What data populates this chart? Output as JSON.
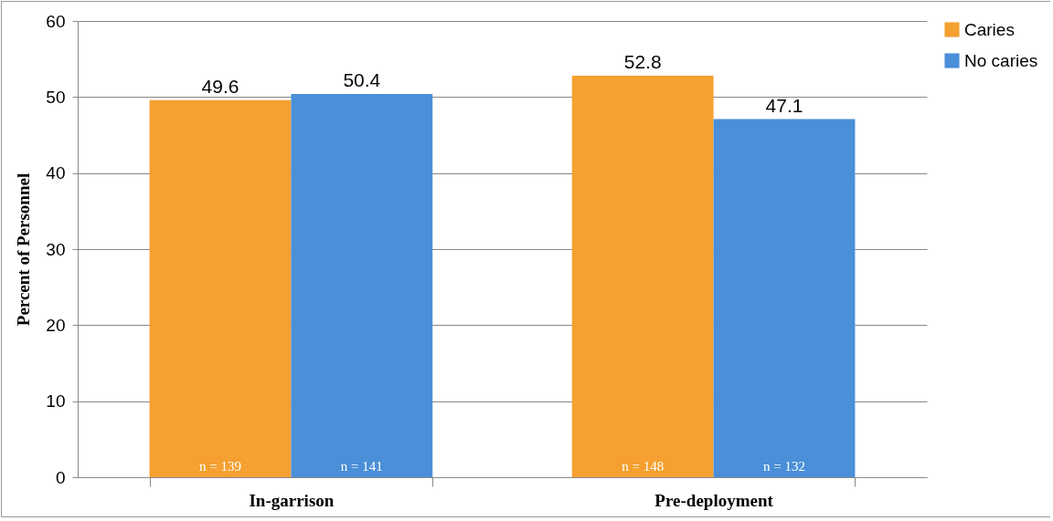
{
  "chart_data": {
    "type": "bar",
    "ylabel": "Percent of Personnel",
    "categories": [
      "In-garrison",
      "Pre-deployment"
    ],
    "series": [
      {
        "name": "Caries",
        "color": "#f5a030",
        "values": [
          49.6,
          52.8
        ]
      },
      {
        "name": "No caries",
        "color": "#4a8fd8",
        "values": [
          50.4,
          47.1
        ]
      }
    ],
    "ylim": [
      0,
      60
    ],
    "yticks": [
      0,
      10,
      20,
      30,
      40,
      50,
      60
    ],
    "grid": "y",
    "legend": "right",
    "data_labels": true,
    "annotations": [
      "n = 139",
      "n = 141",
      "n = 148",
      "n = 132"
    ]
  }
}
